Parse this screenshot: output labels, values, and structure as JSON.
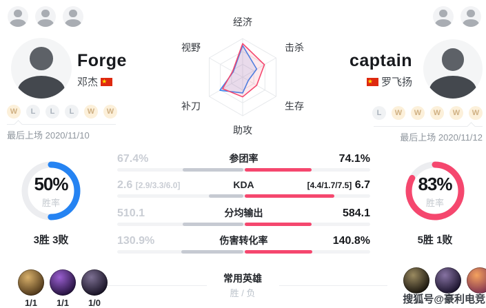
{
  "header": {
    "left_player": {
      "name": "Forge",
      "real_name": "邓杰",
      "flag": "china",
      "recent_results": [
        "W",
        "L",
        "L",
        "L",
        "W",
        "W"
      ],
      "last_played": "最后上场 2020/11/10"
    },
    "right_player": {
      "name": "captain",
      "real_name": "罗飞扬",
      "flag": "china",
      "recent_results": [
        "L",
        "W",
        "W",
        "W",
        "W",
        "W"
      ],
      "last_played": "最后上场 2020/11/12"
    }
  },
  "radar": {
    "axis_labels": [
      "经济",
      "击杀",
      "生存",
      "助攻",
      "补刀",
      "视野"
    ],
    "levels": 3,
    "series": [
      {
        "name": "Forge",
        "color": "#3a86f0",
        "values": [
          0.82,
          0.42,
          0.17,
          0.41,
          0.68,
          0.28
        ]
      },
      {
        "name": "captain",
        "color": "#f5476e",
        "values": [
          0.87,
          0.65,
          0.42,
          0.51,
          0.6,
          0.3
        ]
      }
    ]
  },
  "summary": {
    "left": {
      "win_rate": "50%",
      "win_rate_value": 50,
      "caption": "胜率",
      "record": "3胜 3败",
      "color": "#2583f2"
    },
    "right": {
      "win_rate": "83%",
      "win_rate_value": 83,
      "caption": "胜率",
      "record": "5胜 1败",
      "color": "#f5476e"
    }
  },
  "stats": {
    "rows": [
      {
        "left_main": "67.4%",
        "left_sub": "",
        "label": "参团率",
        "right_sub": "",
        "right_main": "74.1%",
        "left_bar": 0.476,
        "right_bar": 0.53
      },
      {
        "left_main": "2.6",
        "left_sub": "[2.9/3.3/6.0]",
        "label": "KDA",
        "right_sub": "[4.4/1.7/7.5]",
        "right_main": "6.7",
        "left_bar": 0.27,
        "right_bar": 0.71
      },
      {
        "left_main": "510.1",
        "left_sub": "",
        "label": "分均输出",
        "right_sub": "",
        "right_main": "584.1",
        "left_bar": 0.475,
        "right_bar": 0.53
      },
      {
        "left_main": "130.9%",
        "left_sub": "",
        "label": "伤害转化率",
        "right_sub": "",
        "right_main": "140.8%",
        "left_bar": 0.49,
        "right_bar": 0.535
      }
    ]
  },
  "common": {
    "title": "常用英雄",
    "subtitle": "胜 / 负",
    "left_heroes": [
      {
        "record": "1/1",
        "colors": [
          "#d8b06a",
          "#4a3317"
        ]
      },
      {
        "record": "1/1",
        "colors": [
          "#9a5fd0",
          "#200f38"
        ]
      },
      {
        "record": "1/0",
        "colors": [
          "#7c6f92",
          "#140f20"
        ]
      }
    ],
    "right_heroes": [
      {
        "colors": [
          "#9a8a60",
          "#16120c"
        ]
      },
      {
        "colors": [
          "#8672a2",
          "#171028"
        ]
      },
      {
        "colors": [
          "#f5a25e",
          "#7e3050"
        ]
      }
    ]
  },
  "watermark": "搜狐号@豪利电竞"
}
